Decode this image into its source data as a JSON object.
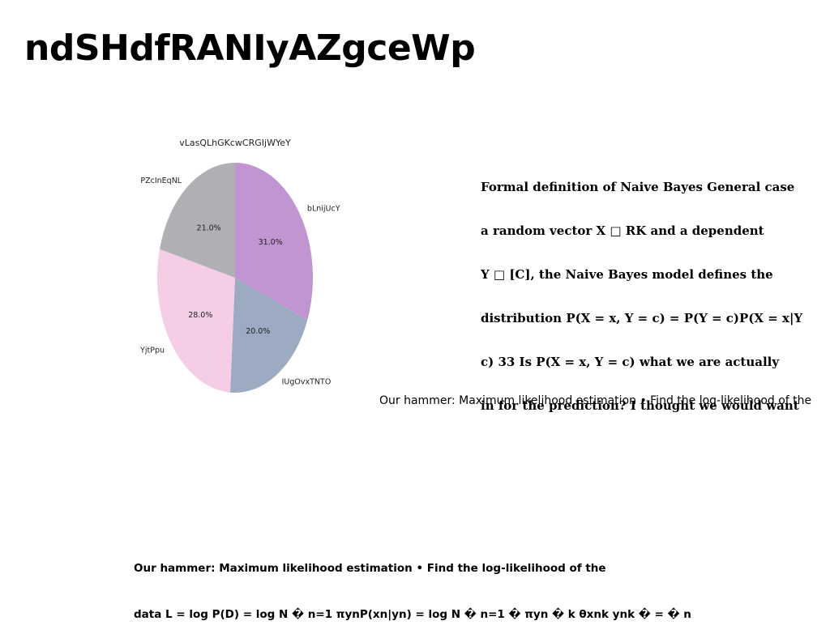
{
  "page": {
    "title": "ndSHdfRANIyAZgceWp"
  },
  "chart_data": {
    "type": "pie",
    "title": "vLasQLhGKcwCRGIjWYeY",
    "slices": [
      {
        "label": "bLnijUcY",
        "value": 31.0,
        "pct_label": "31.0%",
        "color": "#c195d2"
      },
      {
        "label": "IUgOvxTNTO",
        "value": 20.0,
        "pct_label": "20.0%",
        "color": "#9caac2"
      },
      {
        "label": "YjtPpu",
        "value": 28.0,
        "pct_label": "28.0%",
        "color": "#f6cde6"
      },
      {
        "label": "PZcInEqNL",
        "value": 21.0,
        "pct_label": "21.0%",
        "color": "#b0afb3"
      }
    ],
    "start": "top",
    "direction": "clockwise"
  },
  "text_blocks": {
    "right": {
      "lines": [
        "Formal definition of Naive Bayes General case",
        "a random vector X □ RK and a dependent",
        "Y □ [C], the Naive Bayes model defines the",
        "distribution P(X = x, Y = c) = P(Y = c)P(X = x|Y",
        "c) 33 Is P(X = x, Y = c) what we are actually",
        "in for the prediction? I thought we would want"
      ]
    },
    "middle": "Our hammer: Maximum likelihood estimation • Find the log-likelihood of the",
    "bottom": {
      "lines": [
        "Our hammer: Maximum likelihood estimation • Find the log-likelihood of the",
        "data L = log P(D) = log N � n=1 πynP(xn|yn) = log N � n=1 � πyn � k θxnk ynk � = � n"
      ]
    }
  }
}
